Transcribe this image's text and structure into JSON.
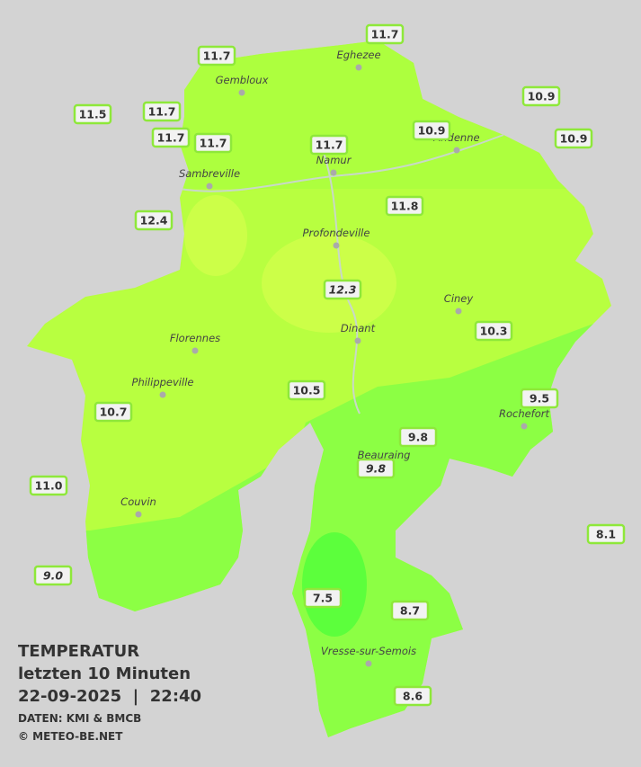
{
  "header": {
    "title": "TEMPERATUR",
    "subtitle": "letzten 10 Minuten",
    "datetime": "22-09-2025  |  22:40",
    "source": "DATEN: KMI & BMCB",
    "copyright": "© METEO-BE.NET"
  },
  "cities": [
    "Eghezee",
    "Gembloux",
    "Andenne",
    "Namur",
    "Sambreville",
    "Profondeville",
    "Ciney",
    "Dinant",
    "Florennes",
    "Philippeville",
    "Rochefort",
    "Beauraing",
    "Couvin",
    "Vresse-sur-Semois"
  ],
  "stations": [
    "11.7",
    "11.7",
    "11.5",
    "11.7",
    "11.7",
    "11.7",
    "10.9",
    "10.9",
    "10.9",
    "11.7",
    "11.8",
    "12.4",
    "12.3",
    "10.3",
    "10.5",
    "9.5",
    "10.7",
    "9.8",
    "9.8",
    "11.0",
    "8.1",
    "9.0",
    "7.5",
    "8.7",
    "8.6"
  ]
}
